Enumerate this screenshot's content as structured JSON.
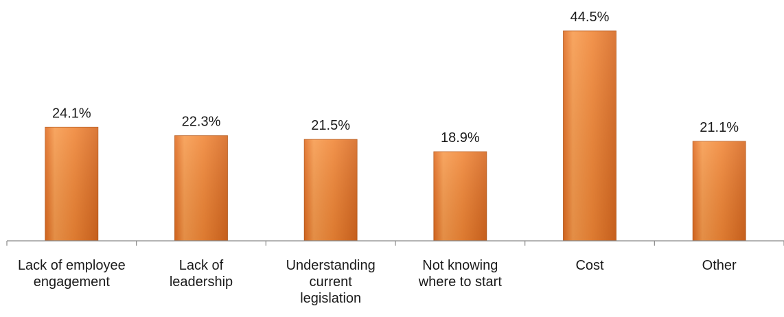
{
  "chart_data": {
    "type": "bar",
    "categories": [
      [
        "Lack of employee",
        "engagement"
      ],
      [
        "Lack of",
        "leadership"
      ],
      [
        "Understanding",
        "current",
        "legislation"
      ],
      [
        "Not knowing",
        "where to start"
      ],
      [
        "Cost"
      ],
      [
        "Other"
      ]
    ],
    "values": [
      24.1,
      22.3,
      21.5,
      18.9,
      44.5,
      21.1
    ],
    "value_labels": [
      "24.1%",
      "22.3%",
      "21.5%",
      "18.9%",
      "44.5%",
      "21.1%"
    ],
    "title": "",
    "xlabel": "",
    "ylabel": "",
    "ylim": [
      0,
      50
    ],
    "grid": false,
    "legend": "none",
    "colors": {
      "bar_top": "#f7a35c",
      "bar_mid": "#ee7d2e",
      "bar_bottom": "#c9621f",
      "bar_edge": "#b65a1c",
      "axis": "#888888"
    }
  }
}
